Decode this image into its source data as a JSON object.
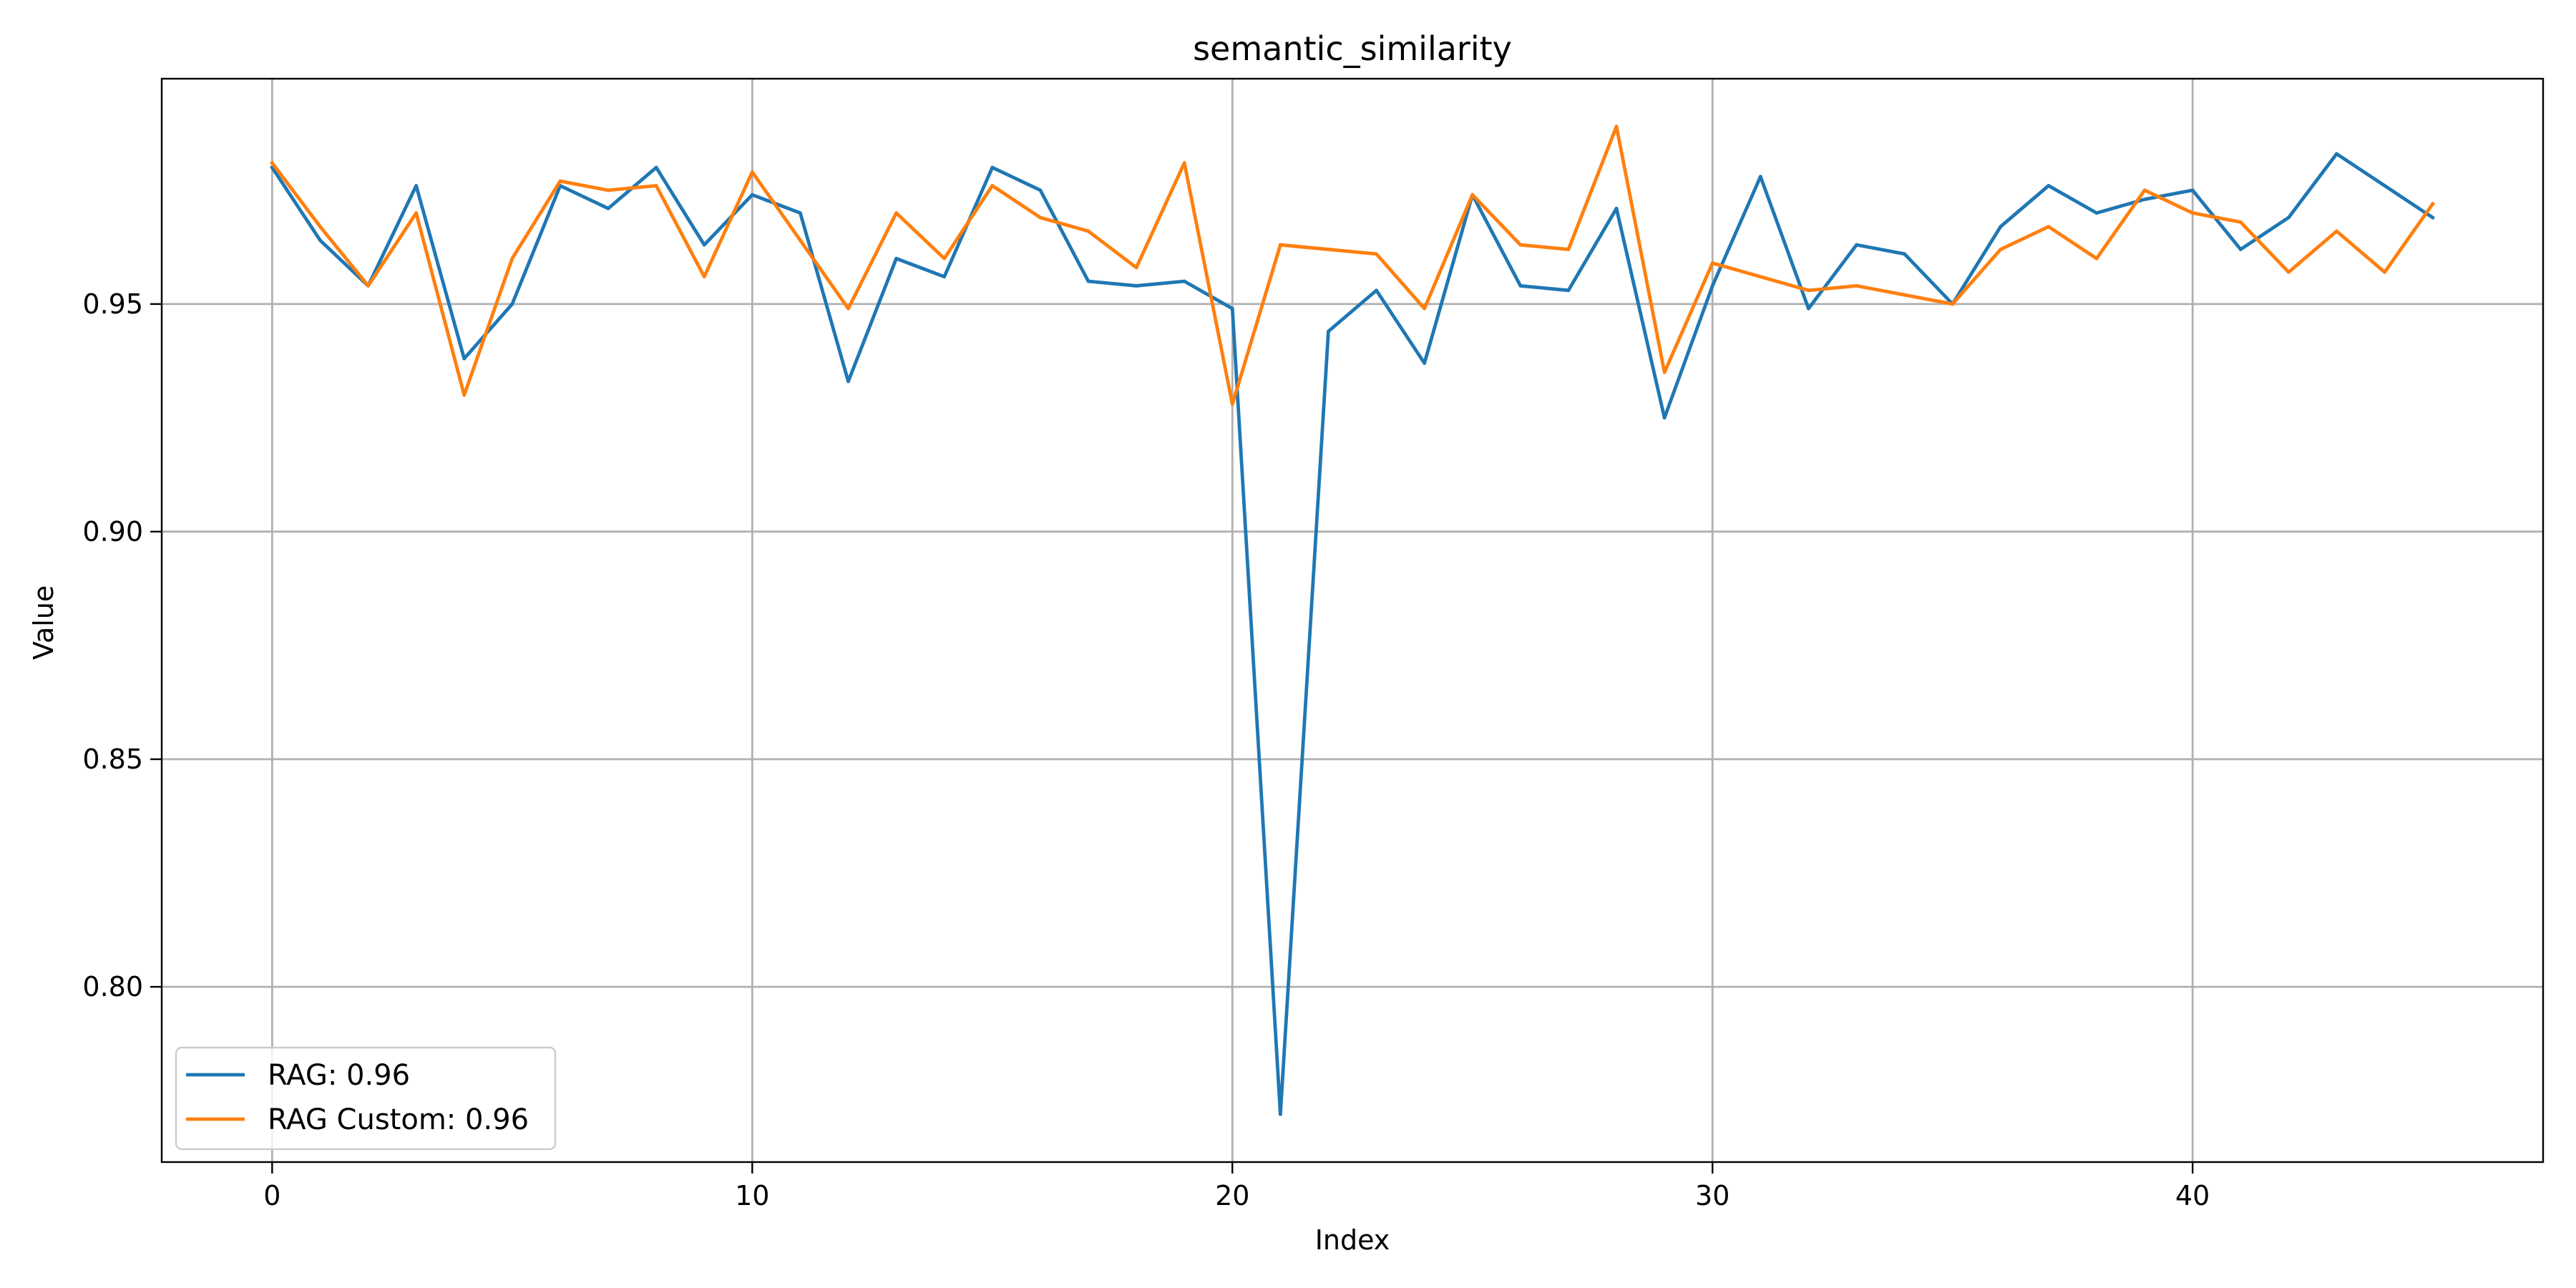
{
  "chart_data": {
    "type": "line",
    "title": "semantic_similarity",
    "xlabel": "Index",
    "ylabel": "Value",
    "xlim": [
      -2.3,
      47.3
    ],
    "ylim": [
      0.7615,
      0.9995
    ],
    "xticks": [
      0,
      10,
      20,
      30,
      40
    ],
    "xtick_labels": [
      "0",
      "10",
      "20",
      "30",
      "40"
    ],
    "yticks": [
      0.8,
      0.85,
      0.9,
      0.95
    ],
    "ytick_labels": [
      "0.80",
      "0.85",
      "0.90",
      "0.95"
    ],
    "grid": true,
    "legend_position": "lower-left",
    "series": [
      {
        "name": "RAG: 0.96",
        "color": "#1f77b4",
        "x": [
          0,
          1,
          2,
          3,
          4,
          5,
          6,
          7,
          8,
          9,
          10,
          11,
          12,
          13,
          14,
          15,
          16,
          17,
          18,
          19,
          20,
          21,
          22,
          23,
          24,
          25,
          26,
          27,
          28,
          29,
          30,
          31,
          32,
          33,
          34,
          35,
          36,
          37,
          38,
          39,
          40,
          41,
          42,
          43,
          44,
          45
        ],
        "values": [
          0.98,
          0.964,
          0.954,
          0.976,
          0.938,
          0.95,
          0.976,
          0.971,
          0.98,
          0.963,
          0.974,
          0.97,
          0.933,
          0.96,
          0.956,
          0.98,
          0.975,
          0.955,
          0.954,
          0.955,
          0.949,
          0.772,
          0.944,
          0.953,
          0.937,
          0.974,
          0.954,
          0.953,
          0.971,
          0.925,
          0.954,
          0.978,
          0.949,
          0.963,
          0.961,
          0.95,
          0.967,
          0.976,
          0.97,
          0.973,
          0.975,
          0.962,
          0.969,
          0.983,
          0.976,
          0.969
        ]
      },
      {
        "name": "RAG Custom: 0.96",
        "color": "#ff7f0e",
        "x": [
          0,
          1,
          2,
          3,
          4,
          5,
          6,
          7,
          8,
          9,
          10,
          11,
          12,
          13,
          14,
          15,
          16,
          17,
          18,
          19,
          20,
          21,
          22,
          23,
          24,
          25,
          26,
          27,
          28,
          29,
          30,
          31,
          32,
          33,
          34,
          35,
          36,
          37,
          38,
          39,
          40,
          41,
          42,
          43,
          44,
          45
        ],
        "values": [
          0.981,
          0.967,
          0.954,
          0.97,
          0.93,
          0.96,
          0.977,
          0.975,
          0.976,
          0.956,
          0.979,
          0.964,
          0.949,
          0.97,
          0.96,
          0.976,
          0.969,
          0.966,
          0.958,
          0.981,
          0.928,
          0.963,
          0.962,
          0.961,
          0.949,
          0.974,
          0.963,
          0.962,
          0.989,
          0.935,
          0.959,
          0.956,
          0.953,
          0.954,
          0.952,
          0.95,
          0.962,
          0.967,
          0.96,
          0.975,
          0.97,
          0.968,
          0.957,
          0.966,
          0.957,
          0.972
        ]
      }
    ]
  }
}
